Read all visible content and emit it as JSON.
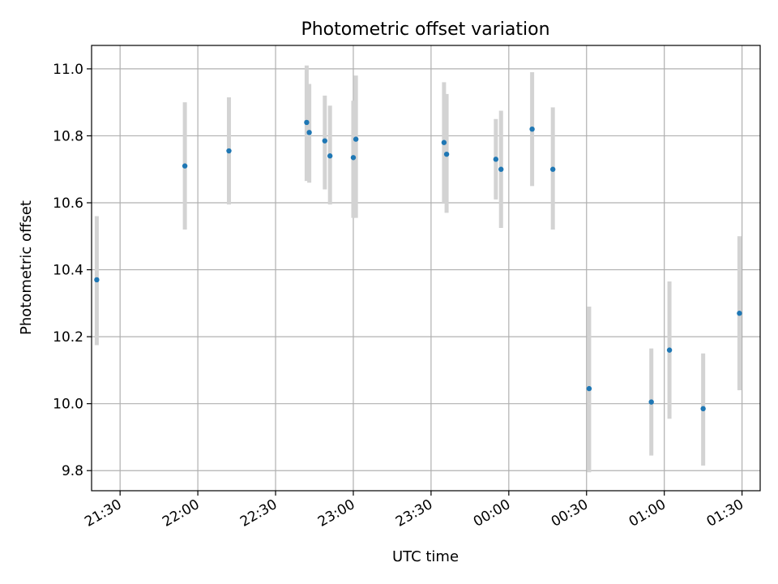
{
  "chart_data": {
    "type": "scatter",
    "title": "Photometric offset variation",
    "xlabel": "UTC time",
    "ylabel": "Photometric offset",
    "grid": true,
    "xlim": [
      "21:19",
      "01:37"
    ],
    "ylim": [
      9.74,
      11.07
    ],
    "x_ticks": [
      "21:30",
      "22:00",
      "22:30",
      "23:00",
      "23:30",
      "00:00",
      "00:30",
      "01:00",
      "01:30"
    ],
    "y_ticks": [
      "9.8",
      "10.0",
      "10.2",
      "10.4",
      "10.6",
      "10.8",
      "11.0"
    ],
    "colors": {
      "points": "#1f77b4",
      "error_bars": "#d3d3d3",
      "grid": "#b0b0b0"
    },
    "series": [
      {
        "x": [
          "21:21",
          "21:55",
          "22:12",
          "22:42",
          "22:43",
          "22:49",
          "22:51",
          "23:00",
          "23:01",
          "23:35",
          "23:36",
          "23:55",
          "23:57",
          "00:09",
          "00:17",
          "00:31",
          "00:55",
          "01:02",
          "01:15",
          "01:29"
        ],
        "y": [
          10.37,
          10.71,
          10.755,
          10.84,
          10.81,
          10.785,
          10.74,
          10.735,
          10.79,
          10.78,
          10.745,
          10.73,
          10.7,
          10.82,
          10.7,
          10.045,
          10.005,
          10.16,
          9.985,
          10.27
        ],
        "yerr_low": [
          10.175,
          10.52,
          10.595,
          10.665,
          10.66,
          10.64,
          10.595,
          10.555,
          10.555,
          10.6,
          10.57,
          10.61,
          10.525,
          10.65,
          10.52,
          9.795,
          9.845,
          9.955,
          9.815,
          10.04
        ],
        "yerr_high": [
          10.56,
          10.9,
          10.915,
          11.01,
          10.955,
          10.92,
          10.89,
          10.905,
          10.98,
          10.96,
          10.925,
          10.85,
          10.875,
          10.99,
          10.885,
          10.29,
          10.165,
          10.365,
          10.15,
          10.5
        ]
      }
    ]
  }
}
